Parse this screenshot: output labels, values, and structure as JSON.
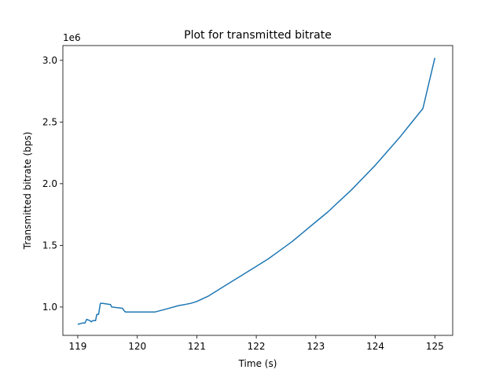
{
  "chart_data": {
    "type": "line",
    "title": "Plot for transmitted bitrate",
    "xlabel": "Time (s)",
    "ylabel": "Transmitted bitrate (bps)",
    "y_offset_label": "1e6",
    "xlim": [
      118.75,
      125.3
    ],
    "ylim": [
      0.77,
      3.12
    ],
    "x_ticks": [
      119,
      120,
      121,
      122,
      123,
      124,
      125
    ],
    "x_tick_labels": [
      "119",
      "120",
      "121",
      "122",
      "123",
      "124",
      "125"
    ],
    "y_ticks": [
      1.0,
      1.5,
      2.0,
      2.5,
      3.0
    ],
    "y_tick_labels": [
      "1.0",
      "1.5",
      "2.0",
      "2.5",
      "3.0"
    ],
    "grid": false,
    "series": [
      {
        "color": "#1f77b4",
        "x": [
          119.0,
          119.08,
          119.12,
          119.15,
          119.2,
          119.23,
          119.25,
          119.3,
          119.32,
          119.35,
          119.38,
          119.42,
          119.55,
          119.57,
          119.75,
          119.78,
          119.8,
          119.9,
          120.0,
          120.3,
          120.5,
          120.7,
          120.8,
          120.9,
          121.0,
          121.2,
          121.4,
          121.6,
          121.8,
          122.0,
          122.2,
          122.4,
          122.6,
          122.8,
          123.0,
          123.2,
          123.4,
          123.6,
          123.8,
          124.0,
          124.2,
          124.4,
          124.6,
          124.8,
          125.0
        ],
        "values": [
          0.86,
          0.87,
          0.87,
          0.9,
          0.89,
          0.88,
          0.89,
          0.89,
          0.94,
          0.94,
          1.03,
          1.03,
          1.02,
          1.0,
          0.99,
          0.97,
          0.96,
          0.96,
          0.96,
          0.96,
          0.985,
          1.012,
          1.02,
          1.03,
          1.045,
          1.09,
          1.15,
          1.21,
          1.27,
          1.33,
          1.39,
          1.46,
          1.53,
          1.61,
          1.69,
          1.77,
          1.86,
          1.95,
          2.05,
          2.15,
          2.26,
          2.37,
          2.49,
          2.61,
          3.02
        ]
      }
    ]
  }
}
